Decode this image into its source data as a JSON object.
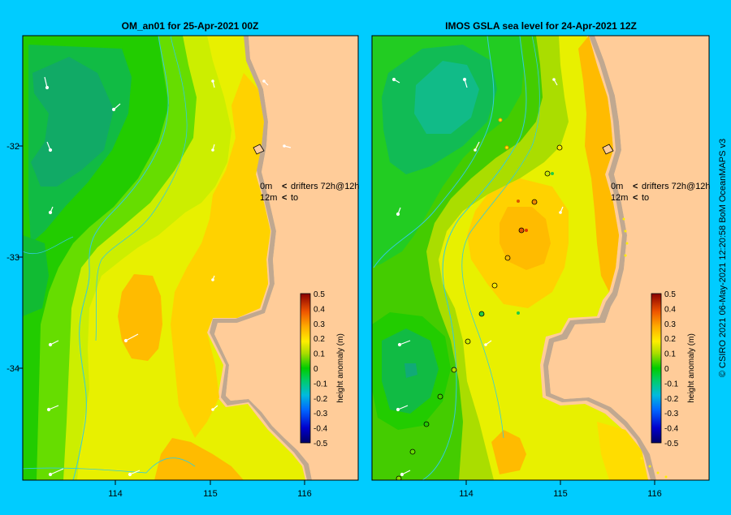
{
  "left_panel": {
    "title": "OM_an01  for 25-Apr-2021 00Z",
    "legend": {
      "line1_value": "0m",
      "line1_text": "drifters 72h@12h",
      "line2_value": "12m",
      "line2_text": "to"
    },
    "colorbar": {
      "label": "height anomaly (m)",
      "ticks": [
        "0.5",
        "0.4",
        "0.3",
        "0.2",
        "0.1",
        "0",
        "-0.1",
        "-0.2",
        "-0.3",
        "-0.4",
        "-0.5"
      ]
    }
  },
  "right_panel": {
    "title": "IMOS GSLA sea level  for 24-Apr-2021 12Z",
    "legend": {
      "line1_value": "0m",
      "line1_text": "drifters 72h@12h",
      "line2_value": "12m",
      "line2_text": "to"
    },
    "colorbar": {
      "label": "height anomaly (m)",
      "ticks": [
        "0.5",
        "0.4",
        "0.3",
        "0.2",
        "0.1",
        "0",
        "-0.1",
        "-0.2",
        "-0.3",
        "-0.4",
        "-0.5"
      ]
    }
  },
  "axes": {
    "lat_ticks": [
      "-32",
      "-33",
      "-34"
    ],
    "lon_ticks": [
      "114",
      "115",
      "116"
    ]
  },
  "credit": "© CSIRO 2021   06-May-2021 12:20:58 BoM OceanMAPS v3",
  "colors": {
    "frame": "#00ccff",
    "land": "#ffcc99",
    "coast": "#c0a890",
    "contour": "#33ccdd",
    "legend_pink": "#ff33ff"
  }
}
